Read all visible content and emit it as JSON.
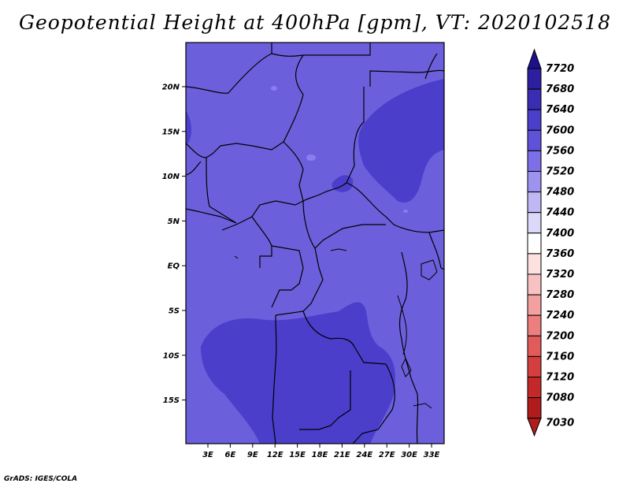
{
  "title": "Geopotential Height at 400hPa [gpm], VT: 2020102518",
  "credit": "GrADS: IGES/COLA",
  "map": {
    "lon_labels": [
      "3E",
      "6E",
      "9E",
      "12E",
      "15E",
      "18E",
      "21E",
      "24E",
      "27E",
      "30E",
      "33E"
    ],
    "lat_labels": [
      "20N",
      "15N",
      "10N",
      "5N",
      "EQ",
      "5S",
      "10S",
      "15S"
    ],
    "fill_colors": {
      "field_7560": "#6c5fdb",
      "field_7600": "#4a3ecb",
      "speckle_7520": "#8a7df0"
    }
  },
  "colorbar": {
    "levels": [
      "7720",
      "7680",
      "7640",
      "7600",
      "7560",
      "7520",
      "7480",
      "7440",
      "7400",
      "7360",
      "7320",
      "7280",
      "7240",
      "7200",
      "7160",
      "7120",
      "7080",
      "7030"
    ],
    "colors": [
      "#1e0f8c",
      "#2d1fa0",
      "#3a2db4",
      "#4a3ecb",
      "#5f52d8",
      "#7c6fe8",
      "#9d92ee",
      "#bfb8f4",
      "#dcd8f9",
      "#ffffff",
      "#fde0e0",
      "#f9c2c2",
      "#f3a0a0",
      "#ec7e7e",
      "#e25b5b",
      "#d43e3e",
      "#c42828",
      "#b01c1c"
    ]
  }
}
